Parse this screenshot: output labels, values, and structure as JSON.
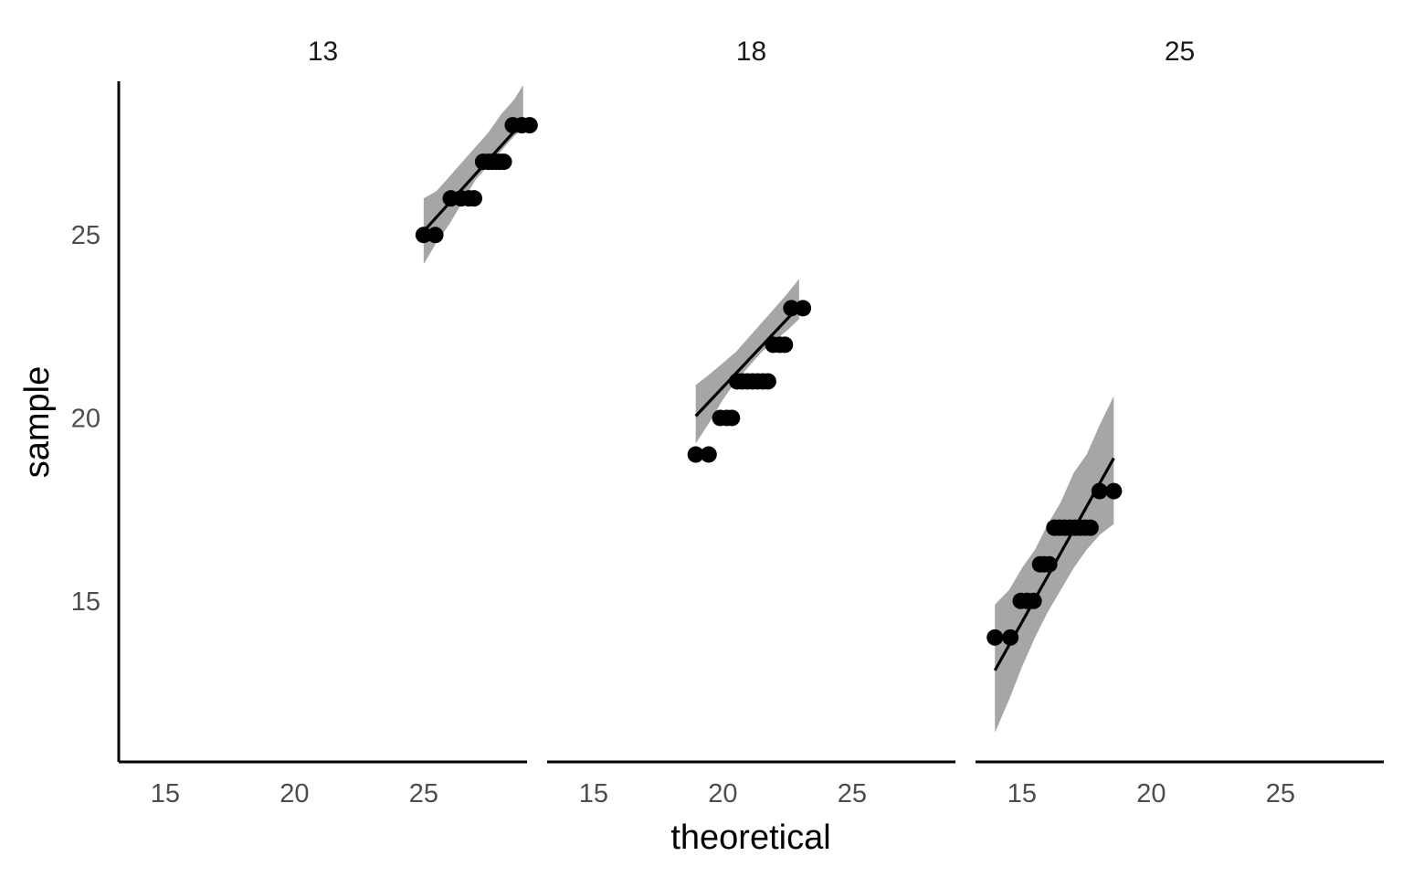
{
  "chart_data": {
    "type": "scatter",
    "subtype": "faceted-qq-plot",
    "xlabel": "theoretical",
    "ylabel": "sample",
    "xlim": [
      13.2,
      29.0
    ],
    "ylim": [
      10.6,
      29.2
    ],
    "xticks": [
      15,
      20,
      25
    ],
    "yticks": [
      15,
      20,
      25
    ],
    "grid": false,
    "colors": {
      "points": "#000000",
      "band": "#a6a6a6",
      "line": "#000000",
      "axis": "#000000"
    },
    "facets": [
      {
        "label": "13",
        "points": [
          [
            25.0,
            25
          ],
          [
            25.45,
            25
          ],
          [
            26.05,
            26
          ],
          [
            26.45,
            26
          ],
          [
            26.75,
            26
          ],
          [
            26.95,
            26
          ],
          [
            27.3,
            27
          ],
          [
            27.5,
            27
          ],
          [
            27.65,
            27
          ],
          [
            27.8,
            27
          ],
          [
            27.95,
            27
          ],
          [
            28.1,
            27
          ],
          [
            28.45,
            28
          ],
          [
            28.8,
            28
          ],
          [
            29.1,
            28
          ]
        ],
        "line": [
          [
            25.0,
            25.1
          ],
          [
            28.85,
            28.1
          ]
        ],
        "band": [
          [
            25.0,
            24.2,
            26.0
          ],
          [
            25.5,
            24.8,
            26.2
          ],
          [
            26.0,
            25.3,
            26.6
          ],
          [
            26.5,
            25.9,
            27.0
          ],
          [
            27.0,
            26.5,
            27.4
          ],
          [
            27.5,
            26.9,
            27.8
          ],
          [
            28.0,
            27.3,
            28.3
          ],
          [
            28.5,
            27.7,
            28.7
          ],
          [
            28.85,
            27.9,
            29.1
          ]
        ]
      },
      {
        "label": "18",
        "points": [
          [
            18.95,
            19
          ],
          [
            19.45,
            19
          ],
          [
            19.9,
            20
          ],
          [
            20.15,
            20
          ],
          [
            20.35,
            20
          ],
          [
            20.55,
            21
          ],
          [
            20.75,
            21
          ],
          [
            20.95,
            21
          ],
          [
            21.15,
            21
          ],
          [
            21.35,
            21
          ],
          [
            21.55,
            21
          ],
          [
            21.75,
            21
          ],
          [
            21.95,
            22
          ],
          [
            22.2,
            22
          ],
          [
            22.4,
            22
          ],
          [
            22.65,
            23
          ],
          [
            23.1,
            23
          ]
        ],
        "line": [
          [
            18.95,
            20.05
          ],
          [
            22.95,
            23.05
          ]
        ],
        "band": [
          [
            18.95,
            19.3,
            20.9
          ],
          [
            19.5,
            19.9,
            21.2
          ],
          [
            20.0,
            20.5,
            21.5
          ],
          [
            20.5,
            21.0,
            21.8
          ],
          [
            21.0,
            21.4,
            22.2
          ],
          [
            21.5,
            21.8,
            22.6
          ],
          [
            22.0,
            22.1,
            23.0
          ],
          [
            22.5,
            22.4,
            23.4
          ],
          [
            22.95,
            22.7,
            23.8
          ]
        ]
      },
      {
        "label": "25",
        "points": [
          [
            13.95,
            14
          ],
          [
            14.55,
            14
          ],
          [
            14.95,
            15
          ],
          [
            15.2,
            15
          ],
          [
            15.45,
            15
          ],
          [
            15.7,
            16
          ],
          [
            15.85,
            16
          ],
          [
            16.05,
            16
          ],
          [
            16.25,
            17
          ],
          [
            16.45,
            17
          ],
          [
            16.65,
            17
          ],
          [
            16.85,
            17
          ],
          [
            17.05,
            17
          ],
          [
            17.25,
            17
          ],
          [
            17.45,
            17
          ],
          [
            17.65,
            17
          ],
          [
            18.0,
            18
          ],
          [
            18.55,
            18
          ]
        ],
        "line": [
          [
            13.95,
            13.1
          ],
          [
            18.55,
            18.9
          ]
        ],
        "band": [
          [
            13.95,
            11.4,
            14.9
          ],
          [
            14.5,
            12.3,
            15.3
          ],
          [
            15.0,
            13.2,
            15.9
          ],
          [
            15.5,
            14.0,
            16.4
          ],
          [
            16.0,
            14.7,
            17.1
          ],
          [
            16.5,
            15.3,
            17.7
          ],
          [
            17.0,
            15.9,
            18.5
          ],
          [
            17.5,
            16.4,
            19.0
          ],
          [
            18.0,
            16.8,
            19.8
          ],
          [
            18.55,
            17.1,
            20.6
          ]
        ]
      }
    ]
  }
}
